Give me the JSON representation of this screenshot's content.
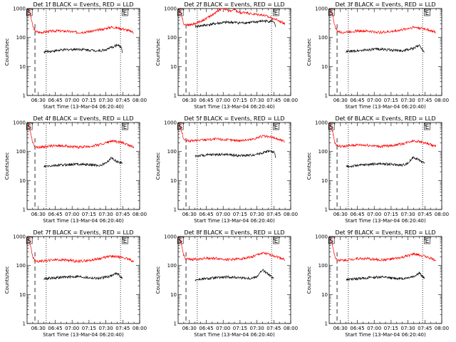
{
  "chart_data": [
    {
      "type": "line",
      "title": "Det 1f BLACK = Events, RED = LLD",
      "xlabel": "Start Time (13-Mar-04 06:20:40)",
      "ylabel": "Counts/sec",
      "yscale": "log",
      "ylim": [
        1,
        1000
      ],
      "xlim": [
        "06:20",
        "08:00"
      ],
      "xticks": [
        "06:30",
        "06:45",
        "07:00",
        "07:15",
        "07:30",
        "07:45",
        "08:00"
      ],
      "yticks": [
        "1",
        "10",
        "100",
        "1000"
      ],
      "markers": [
        {
          "label": "S",
          "time": "06:22"
        },
        {
          "label": "E",
          "time": "07:47"
        }
      ],
      "vlines_dashed": [
        "06:27"
      ],
      "vlines_dotted": [
        "06:37",
        "07:43"
      ],
      "series": [
        {
          "color": "#ff0000",
          "x": [
            "06:21",
            "06:23",
            "06:25",
            "06:27",
            "06:30",
            "06:35",
            "06:45",
            "06:55",
            "07:05",
            "07:15",
            "07:25",
            "07:35",
            "07:45",
            "07:55"
          ],
          "y": [
            1000,
            600,
            250,
            170,
            150,
            155,
            170,
            165,
            150,
            160,
            185,
            230,
            200,
            150
          ]
        },
        {
          "color": "#000000",
          "x": [
            "06:35",
            "06:45",
            "06:55",
            "07:05",
            "07:15",
            "07:25",
            "07:30",
            "07:35",
            "07:40",
            "07:44",
            "07:45"
          ],
          "y": [
            32,
            35,
            38,
            40,
            37,
            35,
            38,
            45,
            55,
            45,
            25
          ]
        }
      ]
    },
    {
      "type": "line",
      "title": "Det 2f BLACK = Events, RED = LLD",
      "xlabel": "Start Time (13-Mar-04 06:20:40)",
      "ylabel": "Counts/sec",
      "yscale": "log",
      "ylim": [
        1,
        1000
      ],
      "xlim": [
        "06:20",
        "08:00"
      ],
      "xticks": [
        "06:30",
        "06:45",
        "07:00",
        "07:15",
        "07:30",
        "07:45",
        "08:00"
      ],
      "yticks": [
        "1",
        "10",
        "100",
        "1000"
      ],
      "markers": [
        {
          "label": "S",
          "time": "06:22"
        },
        {
          "label": "E",
          "time": "07:47"
        }
      ],
      "vlines_dashed": [
        "06:27"
      ],
      "vlines_dotted": [
        "06:37",
        "07:43"
      ],
      "series": [
        {
          "color": "#ff0000",
          "x": [
            "06:21",
            "06:23",
            "06:25",
            "06:27",
            "06:30",
            "06:35",
            "06:45",
            "06:55",
            "07:00",
            "07:05",
            "07:10",
            "07:15",
            "07:20",
            "07:25",
            "07:35",
            "07:45",
            "07:55"
          ],
          "y": [
            1000,
            600,
            300,
            280,
            270,
            300,
            450,
            800,
            1100,
            800,
            900,
            700,
            750,
            650,
            600,
            450,
            300
          ]
        },
        {
          "color": "#000000",
          "x": [
            "06:35",
            "06:45",
            "06:55",
            "07:05",
            "07:15",
            "07:25",
            "07:35",
            "07:45",
            "07:47"
          ],
          "y": [
            240,
            270,
            310,
            340,
            320,
            330,
            370,
            360,
            200
          ]
        }
      ]
    },
    {
      "type": "line",
      "title": "Det 3f BLACK = Events, RED = LLD",
      "xlabel": "Start Time (13-Mar-04 06:20:40)",
      "ylabel": "Counts/sec",
      "yscale": "log",
      "ylim": [
        1,
        1000
      ],
      "xlim": [
        "06:20",
        "08:00"
      ],
      "xticks": [
        "06:30",
        "06:45",
        "07:00",
        "07:15",
        "07:30",
        "07:45",
        "08:00"
      ],
      "yticks": [
        "1",
        "10",
        "100",
        "1000"
      ],
      "markers": [
        {
          "label": "S",
          "time": "06:22"
        },
        {
          "label": "E",
          "time": "07:47"
        }
      ],
      "vlines_dashed": [
        "06:27"
      ],
      "vlines_dotted": [
        "06:37",
        "07:43"
      ],
      "series": [
        {
          "color": "#ff0000",
          "x": [
            "06:21",
            "06:23",
            "06:25",
            "06:27",
            "06:30",
            "06:35",
            "06:45",
            "06:55",
            "07:05",
            "07:15",
            "07:25",
            "07:35",
            "07:45",
            "07:55"
          ],
          "y": [
            1000,
            600,
            250,
            170,
            150,
            155,
            170,
            165,
            150,
            160,
            185,
            230,
            200,
            150
          ]
        },
        {
          "color": "#000000",
          "x": [
            "06:35",
            "06:45",
            "06:55",
            "07:05",
            "07:15",
            "07:25",
            "07:35",
            "07:40",
            "07:45"
          ],
          "y": [
            32,
            35,
            38,
            40,
            37,
            35,
            42,
            55,
            30
          ]
        }
      ]
    },
    {
      "type": "line",
      "title": "Det 4f BLACK = Events, RED = LLD",
      "xlabel": "Start Time (13-Mar-04 06:20:40)",
      "ylabel": "Counts/sec",
      "yscale": "log",
      "ylim": [
        1,
        1000
      ],
      "xlim": [
        "06:20",
        "08:00"
      ],
      "xticks": [
        "06:30",
        "06:45",
        "07:00",
        "07:15",
        "07:30",
        "07:45",
        "08:00"
      ],
      "yticks": [
        "1",
        "10",
        "100",
        "1000"
      ],
      "markers": [
        {
          "label": "S",
          "time": "06:22"
        },
        {
          "label": "E",
          "time": "07:47"
        }
      ],
      "vlines_dashed": [
        "06:27"
      ],
      "vlines_dotted": [
        "06:37",
        "07:43"
      ],
      "series": [
        {
          "color": "#ff0000",
          "x": [
            "06:21",
            "06:23",
            "06:25",
            "06:27",
            "06:30",
            "06:35",
            "06:45",
            "06:55",
            "07:05",
            "07:15",
            "07:25",
            "07:35",
            "07:45",
            "07:55"
          ],
          "y": [
            1000,
            500,
            200,
            150,
            140,
            145,
            160,
            155,
            140,
            150,
            175,
            230,
            200,
            140
          ]
        },
        {
          "color": "#000000",
          "x": [
            "06:35",
            "06:45",
            "06:55",
            "07:05",
            "07:15",
            "07:25",
            "07:30",
            "07:35",
            "07:40",
            "07:45"
          ],
          "y": [
            30,
            33,
            35,
            37,
            35,
            33,
            40,
            60,
            45,
            40
          ]
        }
      ]
    },
    {
      "type": "line",
      "title": "Det 5f BLACK = Events, RED = LLD",
      "xlabel": "Start Time (13-Mar-04 06:20:40)",
      "ylabel": "Counts/sec",
      "yscale": "log",
      "ylim": [
        1,
        1000
      ],
      "xlim": [
        "06:20",
        "08:00"
      ],
      "xticks": [
        "06:30",
        "06:45",
        "07:00",
        "07:15",
        "07:30",
        "07:45",
        "08:00"
      ],
      "yticks": [
        "1",
        "10",
        "100",
        "1000"
      ],
      "markers": [
        {
          "label": "S",
          "time": "06:22"
        },
        {
          "label": "E",
          "time": "07:47"
        }
      ],
      "vlines_dashed": [
        "06:27"
      ],
      "vlines_dotted": [
        "06:37",
        "07:43"
      ],
      "series": [
        {
          "color": "#ff0000",
          "x": [
            "06:21",
            "06:23",
            "06:25",
            "06:27",
            "06:30",
            "06:35",
            "06:45",
            "06:55",
            "07:05",
            "07:15",
            "07:25",
            "07:35",
            "07:45",
            "07:55"
          ],
          "y": [
            1000,
            500,
            260,
            240,
            230,
            240,
            260,
            270,
            250,
            240,
            260,
            340,
            300,
            220
          ]
        },
        {
          "color": "#000000",
          "x": [
            "06:35",
            "06:45",
            "06:55",
            "07:05",
            "07:15",
            "07:25",
            "07:35",
            "07:40",
            "07:45",
            "07:47"
          ],
          "y": [
            70,
            75,
            80,
            78,
            72,
            75,
            90,
            105,
            95,
            60
          ]
        }
      ]
    },
    {
      "type": "line",
      "title": "Det 6f BLACK = Events, RED = LLD",
      "xlabel": "Start Time (13-Mar-04 06:20:40)",
      "ylabel": "Counts/sec",
      "yscale": "log",
      "ylim": [
        1,
        1000
      ],
      "xlim": [
        "06:20",
        "08:00"
      ],
      "xticks": [
        "06:30",
        "06:45",
        "07:00",
        "07:15",
        "07:30",
        "07:45",
        "08:00"
      ],
      "yticks": [
        "1",
        "10",
        "100",
        "1000"
      ],
      "markers": [
        {
          "label": "S",
          "time": "06:22"
        },
        {
          "label": "E",
          "time": "07:47"
        }
      ],
      "vlines_dashed": [
        "06:27"
      ],
      "vlines_dotted": [
        "06:37",
        "07:43"
      ],
      "series": [
        {
          "color": "#ff0000",
          "x": [
            "06:21",
            "06:23",
            "06:25",
            "06:27",
            "06:30",
            "06:35",
            "06:45",
            "06:55",
            "07:05",
            "07:15",
            "07:25",
            "07:35",
            "07:45",
            "07:55"
          ],
          "y": [
            1000,
            500,
            200,
            160,
            150,
            155,
            170,
            165,
            150,
            160,
            185,
            240,
            200,
            150
          ]
        },
        {
          "color": "#000000",
          "x": [
            "06:35",
            "06:45",
            "06:55",
            "07:05",
            "07:15",
            "07:25",
            "07:30",
            "07:35",
            "07:40",
            "07:45"
          ],
          "y": [
            30,
            33,
            36,
            38,
            36,
            34,
            40,
            65,
            50,
            40
          ]
        }
      ]
    },
    {
      "type": "line",
      "title": "Det 7f BLACK = Events, RED = LLD",
      "xlabel": "Start Time (13-Mar-04 06:20:40)",
      "ylabel": "Counts/sec",
      "yscale": "log",
      "ylim": [
        1,
        1000
      ],
      "xlim": [
        "06:20",
        "08:00"
      ],
      "xticks": [
        "06:30",
        "06:45",
        "07:00",
        "07:15",
        "07:30",
        "07:45",
        "08:00"
      ],
      "yticks": [
        "1",
        "10",
        "100",
        "1000"
      ],
      "markers": [
        {
          "label": "S",
          "time": "06:22"
        },
        {
          "label": "E",
          "time": "07:47"
        }
      ],
      "vlines_dashed": [
        "06:27"
      ],
      "vlines_dotted": [
        "06:37",
        "07:43"
      ],
      "series": [
        {
          "color": "#ff0000",
          "x": [
            "06:21",
            "06:23",
            "06:25",
            "06:27",
            "06:30",
            "06:35",
            "06:45",
            "06:55",
            "07:05",
            "07:15",
            "07:25",
            "07:35",
            "07:45",
            "07:55"
          ],
          "y": [
            1000,
            500,
            200,
            150,
            140,
            145,
            160,
            155,
            140,
            150,
            175,
            210,
            190,
            140
          ]
        },
        {
          "color": "#000000",
          "x": [
            "06:35",
            "06:45",
            "06:55",
            "07:05",
            "07:15",
            "07:25",
            "07:35",
            "07:40",
            "07:45"
          ],
          "y": [
            35,
            38,
            40,
            42,
            38,
            36,
            45,
            55,
            35
          ]
        }
      ]
    },
    {
      "type": "line",
      "title": "Det 8f BLACK = Events, RED = LLD",
      "xlabel": "Start Time (13-Mar-04 06:20:40)",
      "ylabel": "Counts/sec",
      "yscale": "log",
      "ylim": [
        1,
        1000
      ],
      "xlim": [
        "06:20",
        "08:00"
      ],
      "xticks": [
        "06:30",
        "06:45",
        "07:00",
        "07:15",
        "07:30",
        "07:45",
        "08:00"
      ],
      "yticks": [
        "1",
        "10",
        "100",
        "1000"
      ],
      "markers": [
        {
          "label": "S",
          "time": "06:22"
        },
        {
          "label": "E",
          "time": "07:47"
        }
      ],
      "vlines_dashed": [
        "06:27"
      ],
      "vlines_dotted": [
        "06:37",
        "07:43"
      ],
      "series": [
        {
          "color": "#ff0000",
          "x": [
            "06:21",
            "06:23",
            "06:25",
            "06:27",
            "06:30",
            "06:35",
            "06:45",
            "06:55",
            "07:05",
            "07:15",
            "07:25",
            "07:35",
            "07:45",
            "07:55"
          ],
          "y": [
            1000,
            500,
            220,
            170,
            160,
            165,
            180,
            175,
            160,
            170,
            195,
            270,
            220,
            160
          ]
        },
        {
          "color": "#000000",
          "x": [
            "06:35",
            "06:45",
            "06:55",
            "07:05",
            "07:15",
            "07:25",
            "07:30",
            "07:35",
            "07:40",
            "07:45"
          ],
          "y": [
            32,
            35,
            38,
            40,
            38,
            36,
            42,
            70,
            50,
            35
          ]
        }
      ]
    },
    {
      "type": "line",
      "title": "Det 9f BLACK = Events, RED = LLD",
      "xlabel": "Start Time (13-Mar-04 06:20:40)",
      "ylabel": "Counts/sec",
      "yscale": "log",
      "ylim": [
        1,
        1000
      ],
      "xlim": [
        "06:20",
        "08:00"
      ],
      "xticks": [
        "06:30",
        "06:45",
        "07:00",
        "07:15",
        "07:30",
        "07:45",
        "08:00"
      ],
      "yticks": [
        "1",
        "10",
        "100",
        "1000"
      ],
      "markers": [
        {
          "label": "S",
          "time": "06:22"
        },
        {
          "label": "E",
          "time": "07:47"
        }
      ],
      "vlines_dashed": [
        "06:27"
      ],
      "vlines_dotted": [
        "06:37",
        "07:43"
      ],
      "series": [
        {
          "color": "#ff0000",
          "x": [
            "06:21",
            "06:23",
            "06:25",
            "06:27",
            "06:30",
            "06:35",
            "06:45",
            "06:55",
            "07:05",
            "07:15",
            "07:25",
            "07:35",
            "07:45",
            "07:55"
          ],
          "y": [
            1000,
            500,
            200,
            160,
            150,
            155,
            175,
            170,
            155,
            165,
            190,
            250,
            210,
            150
          ]
        },
        {
          "color": "#000000",
          "x": [
            "06:35",
            "06:45",
            "06:55",
            "07:05",
            "07:15",
            "07:25",
            "07:35",
            "07:40",
            "07:45"
          ],
          "y": [
            32,
            35,
            38,
            40,
            37,
            35,
            42,
            55,
            35
          ]
        }
      ]
    }
  ]
}
